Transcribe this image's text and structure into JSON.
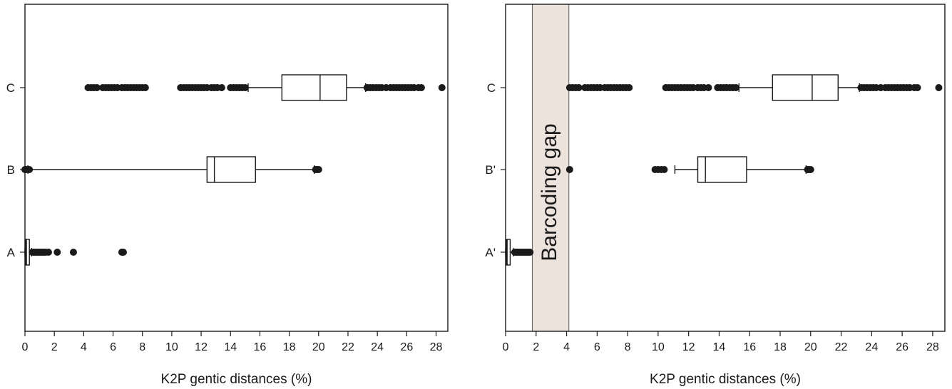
{
  "colors": {
    "axis": "#1a1a1a",
    "outlier": "#1a1a1a",
    "gap_fill": "#ece3dd",
    "gap_stroke": "#5a5a5a"
  },
  "chart_data": [
    {
      "type": "boxplot",
      "orientation": "horizontal",
      "xlabel": "K2P gentic distances (%)",
      "xlim": [
        0,
        28.8
      ],
      "xticks": [
        0,
        2,
        4,
        6,
        8,
        10,
        12,
        14,
        16,
        18,
        20,
        22,
        24,
        26,
        28
      ],
      "categories": [
        "C",
        "B",
        "A"
      ],
      "boxes": [
        {
          "category": "C",
          "whisker_low": 15.2,
          "q1": 17.5,
          "median": 20.1,
          "q3": 21.9,
          "whisker_high": 23.2,
          "outliers": [
            4.3,
            4.5,
            4.7,
            4.9,
            5.3,
            5.5,
            5.7,
            5.9,
            6.1,
            6.3,
            6.6,
            6.8,
            7.0,
            7.2,
            7.4,
            7.6,
            7.8,
            8.0,
            8.2,
            10.6,
            10.8,
            11.0,
            11.2,
            11.4,
            11.6,
            11.8,
            12.0,
            12.2,
            12.4,
            12.7,
            12.9,
            13.1,
            13.4,
            14.0,
            14.2,
            14.4,
            14.6,
            14.8,
            15.0,
            23.3,
            23.5,
            23.7,
            23.9,
            24.1,
            24.3,
            24.6,
            24.9,
            25.1,
            25.3,
            25.5,
            25.7,
            25.9,
            26.1,
            26.3,
            26.5,
            26.8,
            27.0,
            28.4
          ]
        },
        {
          "category": "B",
          "whisker_low": 0.2,
          "q1": 12.4,
          "median": 12.9,
          "q3": 15.7,
          "whisker_high": 19.7,
          "outliers": [
            0.0,
            0.1,
            0.3,
            19.8,
            19.9,
            20.0
          ]
        },
        {
          "category": "A",
          "whisker_low": 0.0,
          "q1": 0.05,
          "median": 0.1,
          "q3": 0.3,
          "whisker_high": 0.45,
          "outliers": [
            0.5,
            0.6,
            0.7,
            0.8,
            0.9,
            1.0,
            1.1,
            1.2,
            1.3,
            1.4,
            1.6,
            2.2,
            3.3,
            6.6,
            6.7
          ]
        }
      ]
    },
    {
      "type": "boxplot",
      "orientation": "horizontal",
      "xlabel": "K2P gentic distances (%)",
      "xlim": [
        0,
        28.8
      ],
      "xticks": [
        0,
        2,
        4,
        6,
        8,
        10,
        12,
        14,
        16,
        18,
        20,
        22,
        24,
        26,
        28
      ],
      "categories": [
        "C",
        "B'",
        "A'"
      ],
      "annotation": {
        "text": "Barcoding gap",
        "x_range": [
          1.75,
          4.15
        ]
      },
      "boxes": [
        {
          "category": "C",
          "whisker_low": 15.3,
          "q1": 17.5,
          "median": 20.1,
          "q3": 21.8,
          "whisker_high": 23.2,
          "outliers": [
            4.2,
            4.4,
            4.6,
            4.8,
            5.2,
            5.4,
            5.6,
            5.8,
            6.0,
            6.2,
            6.5,
            6.7,
            6.9,
            7.1,
            7.3,
            7.5,
            7.7,
            7.9,
            8.1,
            10.5,
            10.7,
            10.9,
            11.1,
            11.3,
            11.5,
            11.7,
            11.9,
            12.1,
            12.3,
            12.6,
            12.8,
            13.0,
            13.3,
            13.9,
            14.1,
            14.3,
            14.5,
            14.7,
            14.9,
            15.1,
            23.3,
            23.5,
            23.7,
            23.9,
            24.1,
            24.3,
            24.6,
            24.9,
            25.1,
            25.3,
            25.5,
            25.7,
            25.9,
            26.1,
            26.3,
            26.5,
            26.8,
            27.0,
            28.4
          ]
        },
        {
          "category": "B'",
          "whisker_low": 11.1,
          "q1": 12.6,
          "median": 13.1,
          "q3": 15.8,
          "whisker_high": 19.7,
          "outliers": [
            4.2,
            9.8,
            10.0,
            10.2,
            10.4,
            19.8,
            19.9,
            20.0
          ]
        },
        {
          "category": "A'",
          "whisker_low": 0.0,
          "q1": 0.05,
          "median": 0.1,
          "q3": 0.3,
          "whisker_high": 0.5,
          "outliers": [
            0.6,
            0.7,
            0.8,
            0.9,
            1.0,
            1.1,
            1.2,
            1.3,
            1.4,
            1.5,
            1.6
          ]
        }
      ]
    }
  ]
}
